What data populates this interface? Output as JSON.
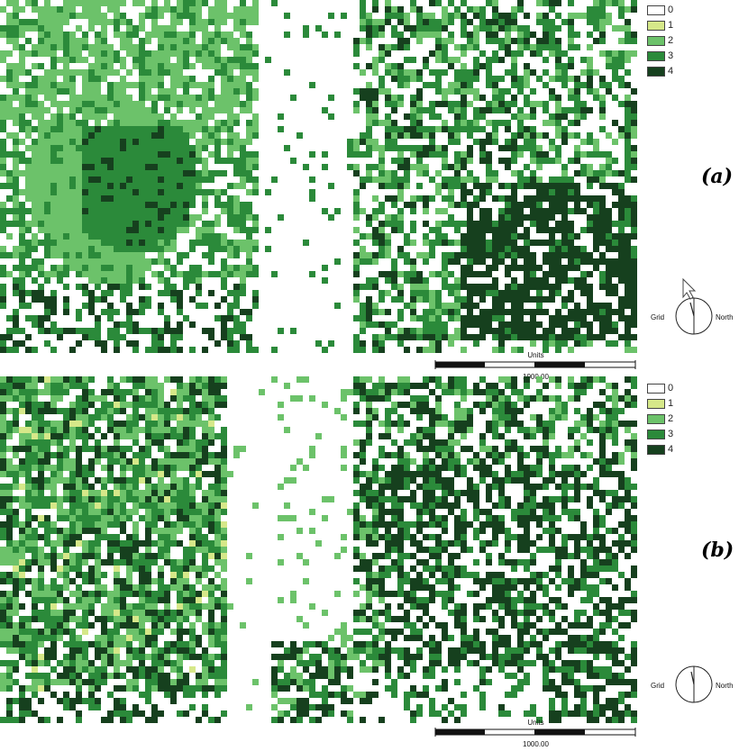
{
  "legend": {
    "items": [
      {
        "label": "0",
        "color": "#ffffff"
      },
      {
        "label": "1",
        "color": "#d6e889"
      },
      {
        "label": "2",
        "color": "#6cc26a"
      },
      {
        "label": "3",
        "color": "#2b8a3a"
      },
      {
        "label": "4",
        "color": "#16401e"
      }
    ]
  },
  "panels": [
    {
      "label": "(a)",
      "north_arrow": {
        "left_text": "Grid",
        "right_text": "North"
      },
      "scale_bar": {
        "units_text": "Units",
        "value_text": "1000.00"
      }
    },
    {
      "label": "(b)",
      "north_arrow": {
        "left_text": "Grid",
        "right_text": "North"
      },
      "scale_bar": {
        "units_text": "Units",
        "value_text": "1000.00"
      }
    }
  ]
}
